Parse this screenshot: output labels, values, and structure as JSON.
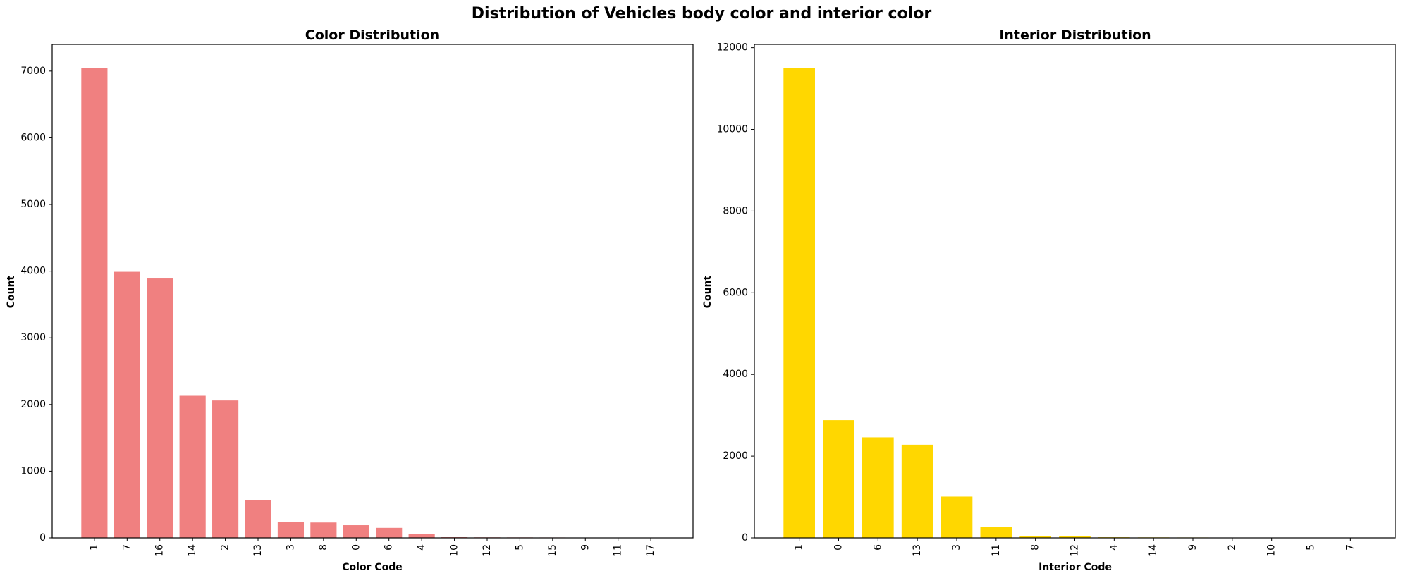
{
  "figure": {
    "suptitle": "Distribution of Vehicles body color and interior color"
  },
  "chart_data": [
    {
      "type": "bar",
      "title": "Color Distribution",
      "xlabel": "Color Code",
      "ylabel": "Count",
      "color": "#f08080",
      "categories": [
        "1",
        "7",
        "16",
        "14",
        "2",
        "13",
        "3",
        "8",
        "0",
        "6",
        "4",
        "10",
        "12",
        "5",
        "15",
        "9",
        "11",
        "17"
      ],
      "values": [
        7050,
        3990,
        3890,
        2130,
        2060,
        570,
        240,
        230,
        190,
        150,
        60,
        10,
        8,
        7,
        6,
        3,
        2,
        1
      ],
      "yticks": [
        0,
        1000,
        2000,
        3000,
        4000,
        5000,
        6000,
        7000
      ],
      "ylim": [
        0,
        7400
      ],
      "grid": false
    },
    {
      "type": "bar",
      "title": "Interior Distribution",
      "xlabel": "Interior Code",
      "ylabel": "Count",
      "color": "#ffd700",
      "categories": [
        "1",
        "0",
        "6",
        "13",
        "3",
        "11",
        "8",
        "12",
        "4",
        "14",
        "9",
        "2",
        "10",
        "5",
        "7"
      ],
      "values": [
        11500,
        2880,
        2460,
        2280,
        1010,
        270,
        50,
        45,
        15,
        12,
        10,
        8,
        5,
        2,
        1
      ],
      "yticks": [
        0,
        2000,
        4000,
        6000,
        8000,
        10000,
        12000
      ],
      "ylim": [
        0,
        12080
      ],
      "grid": false
    }
  ]
}
